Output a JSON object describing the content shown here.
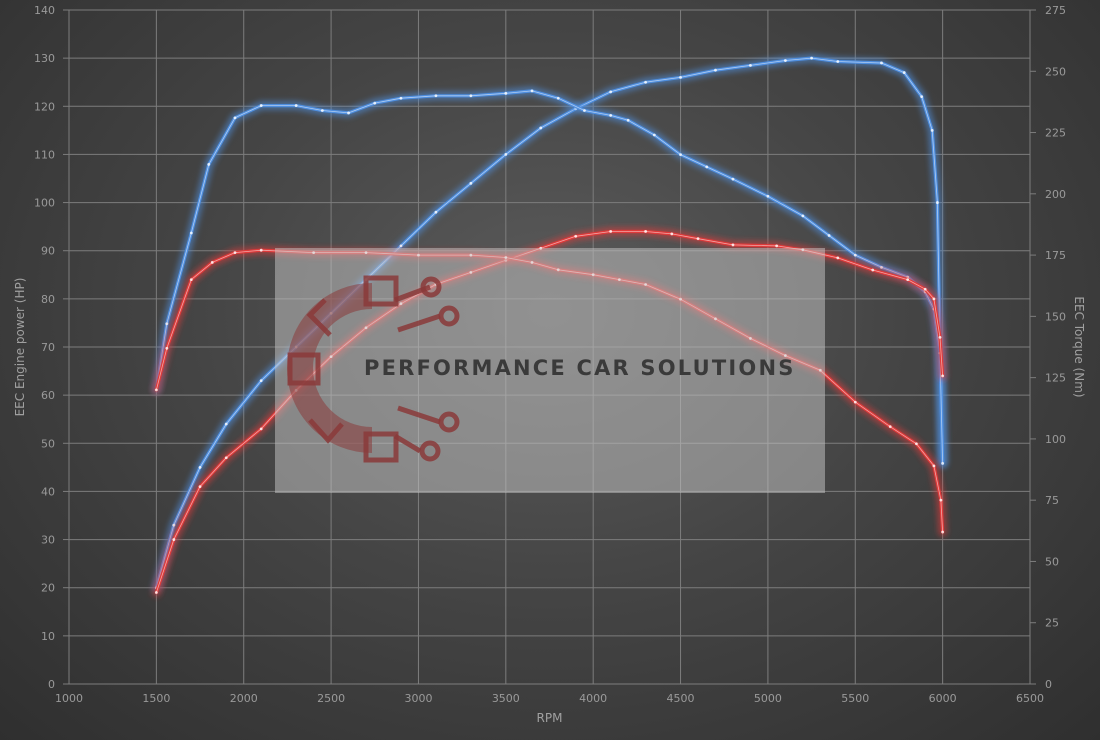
{
  "chart_data": {
    "type": "line",
    "xlabel": "RPM",
    "ylabel": "EEC Engine power (HP)",
    "y2label": "EEC Torque (Nm)",
    "xlim": [
      1000,
      6500
    ],
    "ylim": [
      0,
      140
    ],
    "y2lim": [
      0,
      275
    ],
    "x_ticks": [
      "1000",
      "1500",
      "2000",
      "2500",
      "3000",
      "3500",
      "4000",
      "4500",
      "5000",
      "5500",
      "6000",
      "6500"
    ],
    "y_ticks": [
      "0",
      "10",
      "20",
      "30",
      "40",
      "50",
      "60",
      "70",
      "80",
      "90",
      "100",
      "110",
      "120",
      "130",
      "140"
    ],
    "y2_ticks": [
      "0",
      "25",
      "50",
      "75",
      "100",
      "125",
      "150",
      "175",
      "200",
      "225",
      "250",
      "275"
    ],
    "grid": true,
    "series": [
      {
        "axis": "left",
        "color": "#4f8fe0",
        "points": [
          [
            1500,
            20
          ],
          [
            1600,
            33
          ],
          [
            1750,
            45
          ],
          [
            1900,
            54
          ],
          [
            2100,
            63
          ],
          [
            2300,
            70
          ],
          [
            2500,
            77
          ],
          [
            2700,
            84
          ],
          [
            2900,
            91
          ],
          [
            3100,
            98
          ],
          [
            3300,
            104
          ],
          [
            3500,
            110
          ],
          [
            3700,
            115.5
          ],
          [
            3900,
            119.5
          ],
          [
            4100,
            123
          ],
          [
            4300,
            125
          ],
          [
            4500,
            126
          ],
          [
            4700,
            127.5
          ],
          [
            4900,
            128.5
          ],
          [
            5100,
            129.5
          ],
          [
            5250,
            130
          ],
          [
            5400,
            129.3
          ],
          [
            5650,
            129
          ],
          [
            5780,
            127
          ],
          [
            5880,
            122
          ],
          [
            5940,
            115
          ],
          [
            5970,
            100
          ],
          [
            5985,
            70
          ],
          [
            6000,
            46
          ]
        ]
      },
      {
        "axis": "right",
        "color": "#4f8fe0",
        "points": [
          [
            1500,
            120
          ],
          [
            1560,
            147
          ],
          [
            1700,
            184
          ],
          [
            1800,
            212
          ],
          [
            1950,
            231
          ],
          [
            2100,
            236
          ],
          [
            2300,
            236
          ],
          [
            2450,
            234
          ],
          [
            2600,
            233
          ],
          [
            2750,
            237
          ],
          [
            2900,
            239
          ],
          [
            3100,
            240
          ],
          [
            3300,
            240
          ],
          [
            3500,
            241
          ],
          [
            3650,
            242
          ],
          [
            3800,
            239
          ],
          [
            3950,
            234
          ],
          [
            4100,
            232
          ],
          [
            4200,
            230
          ],
          [
            4350,
            224
          ],
          [
            4500,
            216
          ],
          [
            4650,
            211
          ],
          [
            4800,
            206
          ],
          [
            5000,
            199
          ],
          [
            5200,
            191
          ],
          [
            5350,
            183
          ],
          [
            5500,
            175
          ],
          [
            5650,
            170
          ],
          [
            5800,
            166
          ],
          [
            5900,
            160
          ],
          [
            5950,
            153
          ],
          [
            5985,
            135
          ],
          [
            6000,
            90
          ]
        ]
      },
      {
        "axis": "left",
        "color": "#e03a3a",
        "points": [
          [
            1500,
            19
          ],
          [
            1600,
            30
          ],
          [
            1750,
            41
          ],
          [
            1900,
            47
          ],
          [
            2100,
            53
          ],
          [
            2300,
            61
          ],
          [
            2500,
            68
          ],
          [
            2700,
            74
          ],
          [
            2900,
            79
          ],
          [
            3100,
            83
          ],
          [
            3300,
            85.5
          ],
          [
            3500,
            88
          ],
          [
            3700,
            90.5
          ],
          [
            3900,
            93
          ],
          [
            4100,
            94
          ],
          [
            4300,
            94
          ],
          [
            4450,
            93.5
          ],
          [
            4600,
            92.5
          ],
          [
            4800,
            91.2
          ],
          [
            5050,
            91
          ],
          [
            5200,
            90.2
          ],
          [
            5400,
            88.5
          ],
          [
            5600,
            86
          ],
          [
            5800,
            84
          ],
          [
            5900,
            82
          ],
          [
            5950,
            80
          ],
          [
            5985,
            72
          ],
          [
            6000,
            64
          ]
        ]
      },
      {
        "axis": "right",
        "color": "#e03a3a",
        "points": [
          [
            1500,
            120
          ],
          [
            1560,
            137
          ],
          [
            1700,
            165
          ],
          [
            1820,
            172
          ],
          [
            1950,
            176
          ],
          [
            2100,
            177
          ],
          [
            2400,
            176
          ],
          [
            2700,
            176
          ],
          [
            3000,
            175
          ],
          [
            3300,
            175
          ],
          [
            3500,
            174
          ],
          [
            3650,
            172
          ],
          [
            3800,
            169
          ],
          [
            4000,
            167
          ],
          [
            4150,
            165
          ],
          [
            4300,
            163
          ],
          [
            4500,
            157
          ],
          [
            4700,
            149
          ],
          [
            4900,
            141
          ],
          [
            5100,
            134
          ],
          [
            5300,
            128
          ],
          [
            5500,
            115
          ],
          [
            5700,
            105
          ],
          [
            5850,
            98
          ],
          [
            5950,
            89
          ],
          [
            5990,
            75
          ],
          [
            6000,
            62
          ]
        ]
      }
    ]
  },
  "watermark": {
    "text": "PERFORMANCE CAR SOLUTIONS",
    "logo_icon": "gear-circuit-icon"
  }
}
